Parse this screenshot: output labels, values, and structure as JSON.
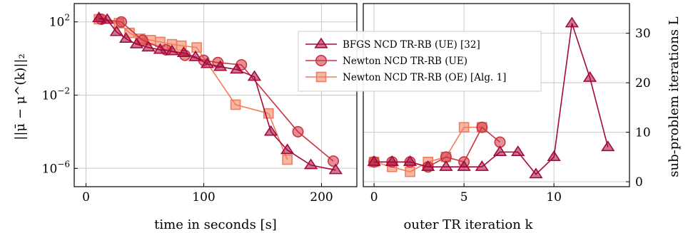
{
  "chart_data": [
    {
      "type": "line",
      "xlabel": "time in seconds [s]",
      "ylabel": "||μ̄ − μ^(k)||₂",
      "yscale": "log",
      "xlim": [
        -10,
        230
      ],
      "ylim_log10": [
        -7,
        3
      ],
      "x_ticks": [
        0,
        100,
        200
      ],
      "x_tick_labels": [
        "0",
        "100",
        "200"
      ],
      "y_ticks_log10": [
        2,
        -2,
        -6
      ],
      "y_tick_labels": [
        [
          "10",
          "2"
        ],
        [
          "10",
          "−2"
        ],
        [
          "10",
          "−6"
        ]
      ],
      "grid": true,
      "series": [
        {
          "name": "BFGS NCD TR-RB (UE) [32]",
          "color": "#a3093a",
          "marker": "triangle",
          "x": [
            11,
            18,
            26,
            34,
            43,
            53,
            63,
            73,
            83,
            93,
            103,
            114,
            128,
            143,
            157,
            171,
            191,
            212
          ],
          "y": [
            160,
            130,
            28,
            12,
            6,
            4,
            3,
            2.5,
            2,
            1.2,
            0.5,
            0.35,
            0.25,
            0.1,
            0.0001,
            1e-05,
            1.5e-06,
            8e-07
          ]
        },
        {
          "name": "Newton NCD TR-RB (UE)",
          "color": "#cc3341",
          "marker": "circle",
          "x": [
            13,
            30,
            48,
            68,
            84,
            100,
            112,
            132,
            180,
            210
          ],
          "y": [
            140,
            100,
            10,
            3,
            1.5,
            0.8,
            0.6,
            0.45,
            0.0001,
            2.5e-06
          ]
        },
        {
          "name": "Newton NCD TR-RB (OE) [Alg. 1]",
          "color": "#f07c5b",
          "marker": "square",
          "x": [
            11,
            28,
            37,
            46,
            55,
            63,
            73,
            81,
            94,
            127,
            155,
            171
          ],
          "y": [
            140,
            85,
            25,
            12,
            10,
            8,
            6,
            5,
            4,
            0.003,
            0.001,
            3e-06
          ]
        }
      ]
    },
    {
      "type": "line",
      "xlabel": "outer TR iteration k",
      "ylabel": "sub-problem iterations L",
      "xlim": [
        -0.6,
        14.2
      ],
      "ylim": [
        -1,
        36
      ],
      "x_ticks": [
        0,
        5,
        10
      ],
      "x_tick_labels": [
        "0",
        "5",
        "10"
      ],
      "y_ticks": [
        0,
        10,
        20,
        30
      ],
      "y_tick_labels": [
        "0",
        "10",
        "20",
        "30"
      ],
      "grid": true,
      "series": [
        {
          "name": "BFGS NCD TR-RB (UE) [32]",
          "x": [
            0,
            1,
            2,
            3,
            4,
            5,
            6,
            7,
            8,
            9,
            10,
            11,
            12,
            13
          ],
          "y": [
            4,
            4,
            4,
            3,
            3,
            3,
            3,
            6,
            6,
            1.5,
            5,
            32,
            21,
            7
          ]
        },
        {
          "name": "Newton NCD TR-RB (UE)",
          "x": [
            0,
            1,
            2,
            3,
            4,
            5,
            6,
            7
          ],
          "y": [
            4,
            4,
            4,
            3,
            5,
            4,
            11,
            8
          ]
        },
        {
          "name": "Newton NCD TR-RB (OE) [Alg. 1]",
          "x": [
            0,
            1,
            2,
            3,
            4,
            5,
            6
          ],
          "y": [
            4,
            3,
            2,
            4,
            5,
            11,
            11
          ]
        }
      ]
    }
  ],
  "legend": {
    "placement": "top-right of left panel",
    "entries": [
      "BFGS NCD TR-RB (UE) [32]",
      "Newton NCD TR-RB (UE)",
      "Newton NCD TR-RB (OE) [Alg. 1]"
    ]
  }
}
